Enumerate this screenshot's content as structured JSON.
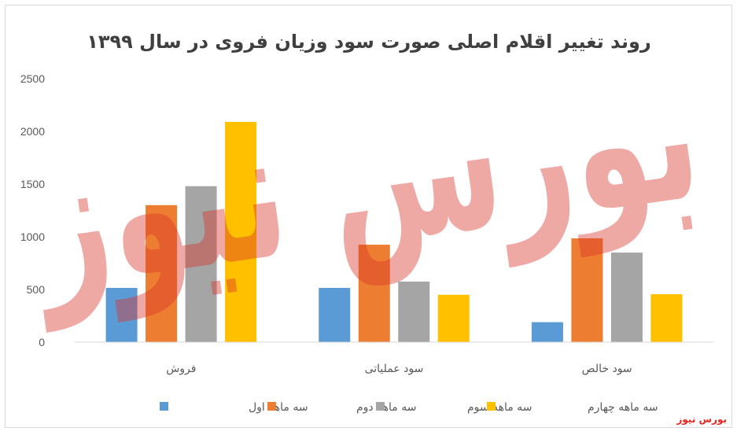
{
  "chart_data": {
    "type": "bar",
    "title": "روند تغییر اقلام اصلی صورت سود وزیان فروی در سال ۱۳۹۹",
    "categories": [
      "فروش",
      "سود عملیاتی",
      "سود خالص"
    ],
    "series": [
      {
        "name": "سه ماهه اول",
        "color": "#5b9bd5",
        "values": [
          515,
          515,
          190
        ]
      },
      {
        "name": "سه ماهه دوم",
        "color": "#ed7d31",
        "values": [
          1300,
          925,
          985
        ]
      },
      {
        "name": "سه ماهه سوم",
        "color": "#a5a5a5",
        "values": [
          1480,
          575,
          850
        ]
      },
      {
        "name": "سه ماهه چهارم",
        "color": "#ffc000",
        "values": [
          2090,
          450,
          455
        ]
      }
    ],
    "yticks": [
      "0",
      "500",
      "1000",
      "1500",
      "2000",
      "2500"
    ],
    "ylim": [
      0,
      2500
    ],
    "grid": false,
    "legend_position": "bottom"
  },
  "watermark": "بورس نیوز",
  "source": "بورس نیوز"
}
